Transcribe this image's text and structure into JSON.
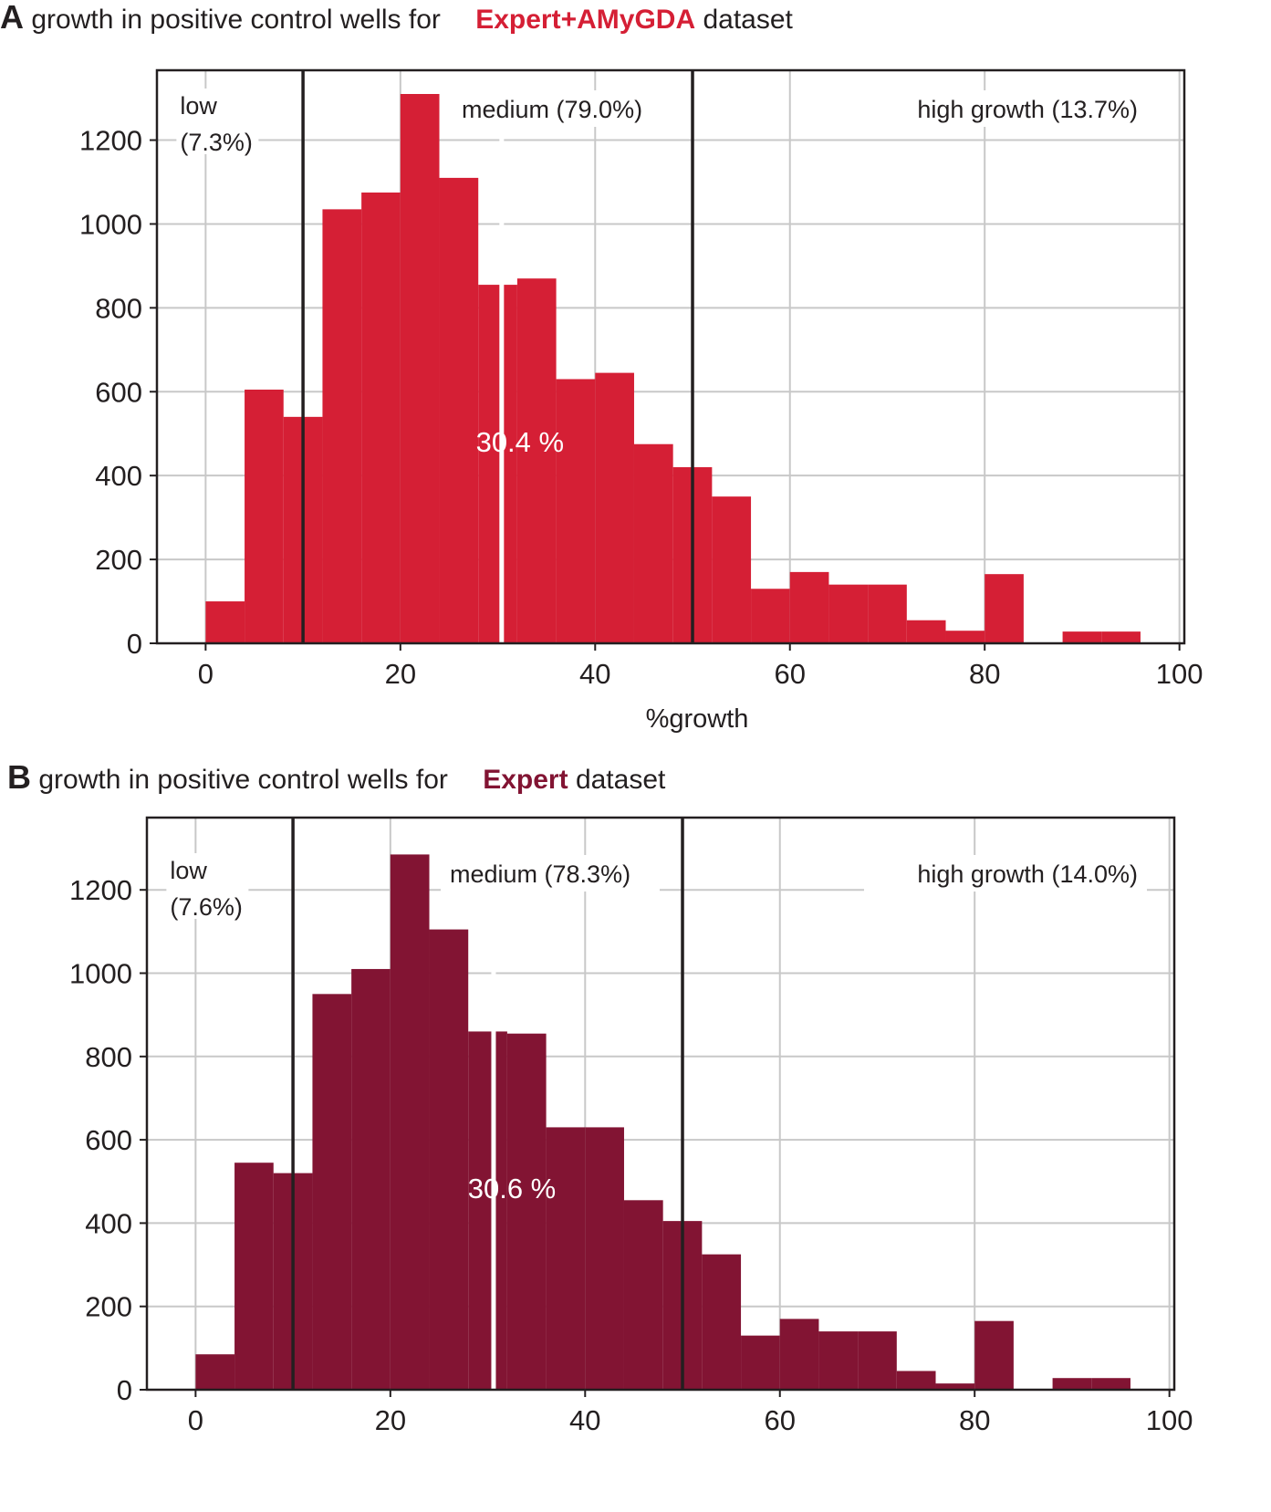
{
  "panels": [
    {
      "letter": "A",
      "title_prefix": "growth in positive control wells for",
      "dataset": "Expert+AMyGDA",
      "title_suffix": "dataset",
      "color": "#d51f35"
    },
    {
      "letter": "B",
      "title_prefix": "growth in positive control wells for",
      "dataset": "Expert",
      "title_suffix": "dataset",
      "color": "#821433"
    }
  ],
  "chart_data": [
    {
      "type": "bar",
      "title": "growth in positive control wells for Expert+AMyGDA dataset",
      "xlabel": "%growth",
      "ylabel": "",
      "xlim": [
        -5,
        100.5
      ],
      "ylim": [
        0,
        1310
      ],
      "xticks": [
        0,
        20,
        40,
        60,
        80,
        100
      ],
      "yticks": [
        0,
        200,
        400,
        600,
        800,
        1000,
        1200
      ],
      "grid": true,
      "bar_color": "#d51f35",
      "bin_width": 4,
      "bin_starts": [
        0,
        4,
        8,
        12,
        16,
        20,
        24,
        28,
        32,
        36,
        40,
        44,
        48,
        52,
        56,
        60,
        64,
        68,
        72,
        76,
        80,
        84,
        88,
        92
      ],
      "values": [
        100,
        605,
        540,
        1035,
        1075,
        1310,
        1110,
        855,
        870,
        630,
        645,
        475,
        420,
        350,
        130,
        170,
        140,
        140,
        55,
        30,
        165,
        0,
        28,
        28
      ],
      "thresholds": [
        10,
        50
      ],
      "median": 30.4,
      "median_label": "30.4 %",
      "region_labels": [
        {
          "line1": "low",
          "line2": "(7.3%)"
        },
        {
          "line1": "medium (79.0%)"
        },
        {
          "line1": "high growth (13.7%)"
        }
      ]
    },
    {
      "type": "bar",
      "title": "growth in positive control wells for Expert dataset",
      "xlabel": "",
      "ylabel": "",
      "xlim": [
        -5,
        100.5
      ],
      "ylim": [
        0,
        1310
      ],
      "xticks": [
        0,
        20,
        40,
        60,
        80,
        100
      ],
      "yticks": [
        0,
        200,
        400,
        600,
        800,
        1000,
        1200
      ],
      "grid": true,
      "bar_color": "#821433",
      "bin_width": 4,
      "bin_starts": [
        0,
        4,
        8,
        12,
        16,
        20,
        24,
        28,
        32,
        36,
        40,
        44,
        48,
        52,
        56,
        60,
        64,
        68,
        72,
        76,
        80,
        84,
        88,
        92
      ],
      "values": [
        85,
        545,
        520,
        950,
        1010,
        1285,
        1105,
        860,
        855,
        630,
        630,
        455,
        405,
        325,
        130,
        170,
        140,
        140,
        45,
        15,
        165,
        0,
        28,
        28
      ],
      "thresholds": [
        10,
        50
      ],
      "median": 30.6,
      "median_label": "30.6 %",
      "region_labels": [
        {
          "line1": "low",
          "line2": "(7.6%)"
        },
        {
          "line1": "medium (78.3%)"
        },
        {
          "line1": "high growth (14.0%)"
        }
      ]
    }
  ]
}
